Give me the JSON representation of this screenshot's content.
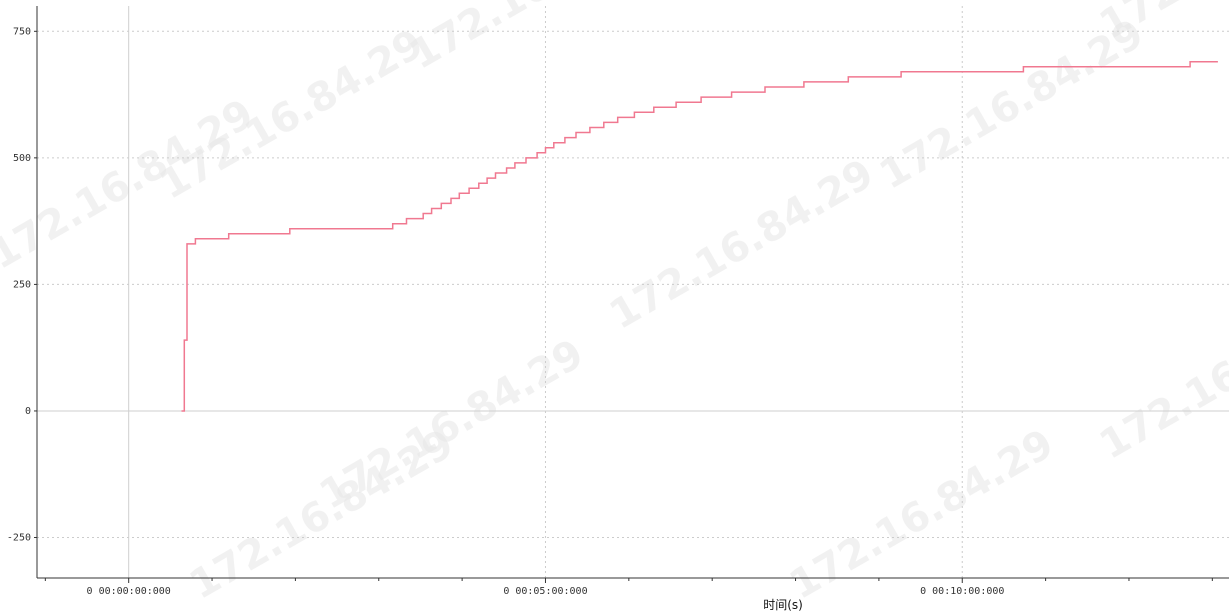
{
  "watermark": "172.16.84.29",
  "colors": {
    "series": "#f07890",
    "grid": "#cccccc",
    "axis": "#333333",
    "zero_line": "#cfcfcf"
  },
  "chart_data": {
    "type": "line",
    "step": true,
    "title": "",
    "xlabel": "时间(s)",
    "ylabel": "",
    "grid": true,
    "ylim": [
      -330,
      800
    ],
    "yticks": [
      {
        "value": 750,
        "label": "750"
      },
      {
        "value": 500,
        "label": "500"
      },
      {
        "value": 250,
        "label": "250"
      },
      {
        "value": 0,
        "label": "0"
      },
      {
        "value": -250,
        "label": "-250"
      }
    ],
    "xlim_seconds": [
      -66,
      792
    ],
    "xticks": [
      {
        "value": 0,
        "label": "0  00:00:00:000"
      },
      {
        "value": 300,
        "label": "0  00:05:00:000"
      },
      {
        "value": 600,
        "label": "0  00:10:00:000"
      }
    ],
    "x_unit": "s",
    "series": [
      {
        "points": [
          [
            38,
            0
          ],
          [
            40,
            140
          ],
          [
            42,
            330
          ],
          [
            48,
            340
          ],
          [
            72,
            350
          ],
          [
            116,
            360
          ],
          [
            190,
            370
          ],
          [
            200,
            380
          ],
          [
            212,
            390
          ],
          [
            218,
            400
          ],
          [
            225,
            410
          ],
          [
            232,
            420
          ],
          [
            238,
            430
          ],
          [
            245,
            440
          ],
          [
            252,
            450
          ],
          [
            258,
            460
          ],
          [
            264,
            470
          ],
          [
            272,
            480
          ],
          [
            278,
            490
          ],
          [
            286,
            500
          ],
          [
            294,
            510
          ],
          [
            300,
            520
          ],
          [
            306,
            530
          ],
          [
            314,
            540
          ],
          [
            322,
            550
          ],
          [
            332,
            560
          ],
          [
            342,
            570
          ],
          [
            352,
            580
          ],
          [
            364,
            590
          ],
          [
            378,
            600
          ],
          [
            394,
            610
          ],
          [
            412,
            620
          ],
          [
            434,
            630
          ],
          [
            458,
            640
          ],
          [
            486,
            650
          ],
          [
            518,
            660
          ],
          [
            556,
            670
          ],
          [
            644,
            680
          ],
          [
            764,
            690
          ],
          [
            784,
            690
          ]
        ]
      }
    ]
  }
}
